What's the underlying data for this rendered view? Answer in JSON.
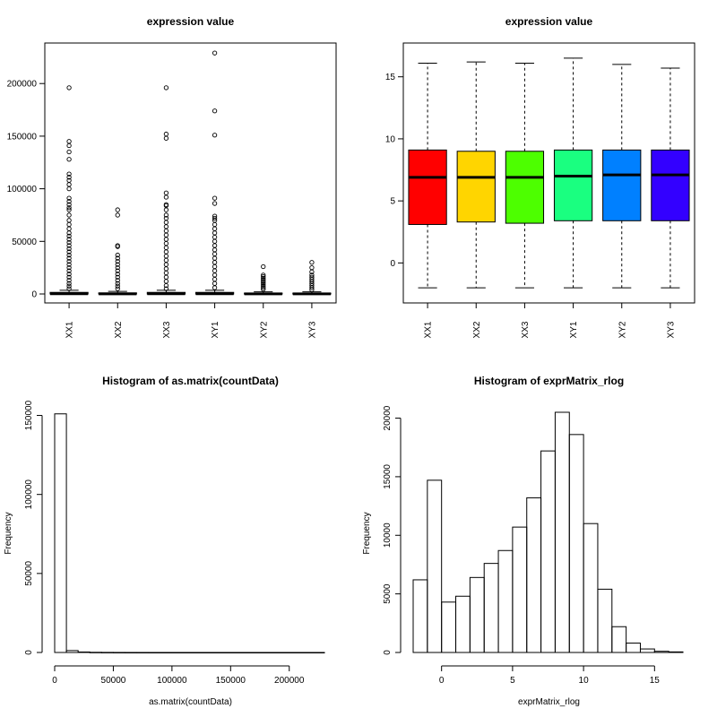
{
  "chart_data": [
    {
      "type": "boxplot",
      "title": "expression value",
      "categories": [
        "XX1",
        "XX2",
        "XX3",
        "XY1",
        "XY2",
        "XY3"
      ],
      "ylim": [
        0,
        230000
      ],
      "y_ticks": [
        0,
        50000,
        100000,
        150000,
        200000
      ],
      "y_tick_labels": [
        "0",
        "50000",
        "100000",
        "150000",
        "200000"
      ],
      "boxes": [
        {
          "q1": 0,
          "median": 200,
          "q3": 1500,
          "whisker_high": 3500
        },
        {
          "q1": 0,
          "median": 150,
          "q3": 1000,
          "whisker_high": 2500
        },
        {
          "q1": 0,
          "median": 200,
          "q3": 1500,
          "whisker_high": 3500
        },
        {
          "q1": 0,
          "median": 200,
          "q3": 1500,
          "whisker_high": 3500
        },
        {
          "q1": 0,
          "median": 100,
          "q3": 800,
          "whisker_high": 2000
        },
        {
          "q1": 0,
          "median": 100,
          "q3": 800,
          "whisker_high": 2000
        }
      ],
      "outliers": [
        [
          196000,
          145000,
          141000,
          135000,
          128000,
          114000,
          111000,
          108000,
          104000,
          100000,
          91000,
          88000,
          85000,
          82000,
          80000,
          75000,
          70000,
          66000,
          62000,
          58000,
          55000,
          52000,
          49000,
          46000,
          43000,
          40000,
          37000,
          34000,
          31000,
          28000,
          25000,
          22000,
          19000,
          16000,
          13000,
          10000,
          7500,
          5000
        ],
        [
          80000,
          75000,
          46000,
          45000,
          37000,
          34000,
          31000,
          28000,
          25000,
          22000,
          19000,
          16000,
          13000,
          10000,
          7500,
          5000
        ],
        [
          196000,
          152000,
          148000,
          96000,
          92000,
          85000,
          84000,
          80000,
          75000,
          72000,
          68000,
          64000,
          60000,
          56000,
          52000,
          48000,
          44000,
          40000,
          36000,
          32000,
          28000,
          24000,
          20000,
          16000,
          12000,
          8000,
          5000
        ],
        [
          229000,
          174000,
          151000,
          91000,
          86000,
          74000,
          72000,
          70000,
          66000,
          62000,
          58000,
          54000,
          50000,
          46000,
          42000,
          38000,
          34000,
          30000,
          26000,
          22000,
          18000,
          14000,
          10000,
          6000
        ],
        [
          26000,
          18000,
          16500,
          15000,
          13500,
          12000,
          10500,
          9000,
          7500,
          6000,
          4500
        ],
        [
          30000,
          25000,
          21000,
          18000,
          16000,
          14000,
          12000,
          10000,
          8000,
          6000,
          4000
        ]
      ]
    },
    {
      "type": "boxplot",
      "title": "expression value",
      "categories": [
        "XX1",
        "XX2",
        "XX3",
        "XY1",
        "XY2",
        "XY3"
      ],
      "ylim": [
        -2.5,
        17
      ],
      "y_ticks": [
        0,
        5,
        10,
        15
      ],
      "y_tick_labels": [
        "0",
        "5",
        "10",
        "15"
      ],
      "colors": [
        "#FF0000",
        "#FFD500",
        "#4DFF00",
        "#1AFF80",
        "#0080FF",
        "#3300FF"
      ],
      "boxes": [
        {
          "whisker_low": -2.0,
          "q1": 3.1,
          "median": 6.9,
          "q3": 9.1,
          "whisker_high": 16.1
        },
        {
          "whisker_low": -2.0,
          "q1": 3.3,
          "median": 6.9,
          "q3": 9.0,
          "whisker_high": 16.2
        },
        {
          "whisker_low": -2.0,
          "q1": 3.2,
          "median": 6.9,
          "q3": 9.0,
          "whisker_high": 16.1
        },
        {
          "whisker_low": -2.0,
          "q1": 3.4,
          "median": 7.0,
          "q3": 9.1,
          "whisker_high": 16.5
        },
        {
          "whisker_low": -2.0,
          "q1": 3.4,
          "median": 7.1,
          "q3": 9.1,
          "whisker_high": 16.0
        },
        {
          "whisker_low": -2.0,
          "q1": 3.4,
          "median": 7.1,
          "q3": 9.1,
          "whisker_high": 15.7
        }
      ]
    },
    {
      "type": "histogram",
      "title": "Histogram of as.matrix(countData)",
      "xlabel": "as.matrix(countData)",
      "ylabel": "Frequency",
      "xlim": [
        0,
        230000
      ],
      "ylim": [
        0,
        152000
      ],
      "x_ticks": [
        0,
        50000,
        100000,
        150000,
        200000
      ],
      "x_tick_labels": [
        "0",
        "50000",
        "100000",
        "150000",
        "200000"
      ],
      "y_ticks": [
        0,
        50000,
        100000,
        150000
      ],
      "y_tick_labels": [
        "0",
        "50000",
        "100000",
        "150000"
      ],
      "bin_width": 10000,
      "counts": [
        151000,
        1200,
        300,
        100,
        50,
        20,
        10,
        5,
        3,
        2,
        1,
        1,
        1,
        1,
        1,
        1,
        1,
        1,
        1,
        1,
        1,
        1,
        1
      ]
    },
    {
      "type": "histogram",
      "title": "Histogram of exprMatrix_rlog",
      "xlabel": "exprMatrix_rlog",
      "ylabel": "Frequency",
      "xlim": [
        -2,
        17
      ],
      "ylim": [
        0,
        20500
      ],
      "x_ticks": [
        0,
        5,
        10,
        15
      ],
      "x_tick_labels": [
        "0",
        "5",
        "10",
        "15"
      ],
      "y_ticks": [
        0,
        5000,
        10000,
        15000,
        20000
      ],
      "y_tick_labels": [
        "0",
        "5000",
        "10000",
        "15000",
        "20000"
      ],
      "bin_start": -2,
      "bin_width": 1,
      "counts": [
        6200,
        14700,
        4300,
        4800,
        6400,
        7600,
        8700,
        10700,
        13200,
        17200,
        20500,
        18600,
        11000,
        5400,
        2200,
        800,
        300,
        100,
        50
      ]
    }
  ]
}
